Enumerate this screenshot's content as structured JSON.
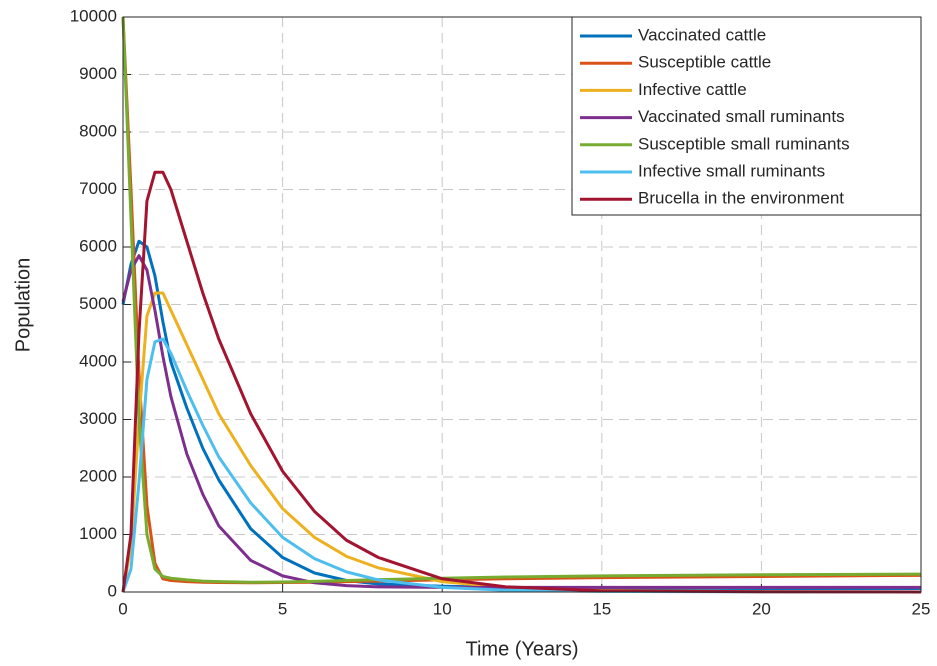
{
  "chart_data": {
    "type": "line",
    "xlabel": "Time (Years)",
    "ylabel": "Population",
    "x": [
      0,
      0.25,
      0.5,
      0.75,
      1,
      1.25,
      1.5,
      2,
      2.5,
      3,
      4,
      5,
      6,
      7,
      8,
      10,
      12,
      15,
      20,
      25
    ],
    "series": [
      {
        "name": "Vaccinated cattle",
        "color": "#0072bd",
        "values": [
          5000,
          5700,
          6100,
          6000,
          5500,
          4700,
          4000,
          3200,
          2500,
          1950,
          1100,
          600,
          330,
          200,
          140,
          100,
          80,
          70,
          60,
          60
        ]
      },
      {
        "name": "Susceptible cattle",
        "color": "#d95319",
        "values": [
          10000,
          7000,
          3800,
          1500,
          500,
          230,
          200,
          180,
          170,
          165,
          160,
          165,
          170,
          180,
          190,
          210,
          230,
          250,
          270,
          290
        ]
      },
      {
        "name": "Infective cattle",
        "color": "#edb120",
        "values": [
          0,
          800,
          3000,
          4800,
          5200,
          5200,
          4900,
          4300,
          3700,
          3100,
          2200,
          1450,
          950,
          620,
          420,
          180,
          80,
          25,
          5,
          0
        ]
      },
      {
        "name": "Vaccinated small ruminants",
        "color": "#7e2f8e",
        "values": [
          5050,
          5600,
          5850,
          5600,
          4900,
          4100,
          3400,
          2400,
          1700,
          1150,
          550,
          280,
          160,
          110,
          90,
          80,
          80,
          80,
          80,
          80
        ]
      },
      {
        "name": "Susceptible small ruminants",
        "color": "#77ac30",
        "values": [
          10000,
          6500,
          3000,
          1000,
          400,
          270,
          240,
          210,
          190,
          180,
          170,
          175,
          185,
          200,
          215,
          240,
          260,
          280,
          300,
          310
        ]
      },
      {
        "name": "Infective small ruminants",
        "color": "#4dbeee",
        "values": [
          0,
          400,
          1900,
          3700,
          4350,
          4400,
          4150,
          3500,
          2900,
          2350,
          1550,
          950,
          580,
          350,
          210,
          80,
          30,
          10,
          2,
          0
        ]
      },
      {
        "name": "Brucella in the environment",
        "color": "#a2142f",
        "values": [
          0,
          1000,
          4500,
          6800,
          7300,
          7300,
          7000,
          6100,
          5200,
          4400,
          3100,
          2100,
          1400,
          900,
          600,
          230,
          90,
          20,
          5,
          1
        ]
      }
    ],
    "xlim": [
      0,
      25
    ],
    "xticks": [
      0,
      5,
      10,
      15,
      20,
      25
    ],
    "ylim": [
      0,
      10000
    ],
    "yticks": [
      0,
      1000,
      2000,
      3000,
      4000,
      5000,
      6000,
      7000,
      8000,
      9000,
      10000
    ],
    "grid": true,
    "legend": "upper right"
  }
}
